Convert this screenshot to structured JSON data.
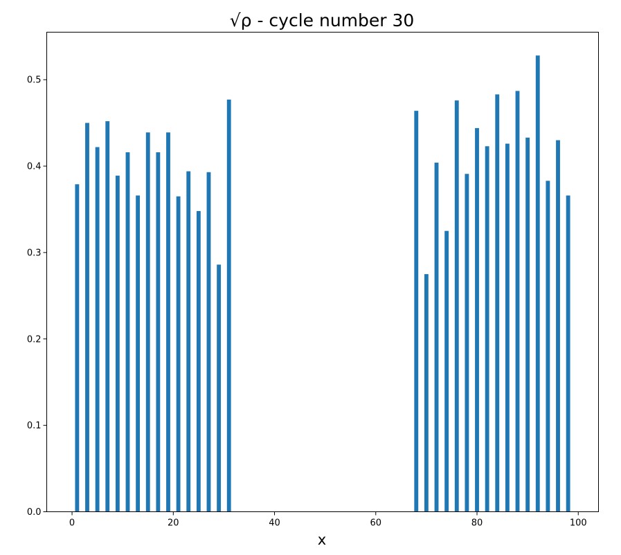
{
  "chart_data": {
    "type": "bar",
    "title_prefix": "√ρ",
    "title_rest": " - cycle number 30",
    "xlabel": "x",
    "ylabel": "",
    "xlim": [
      -5,
      104
    ],
    "ylim": [
      0,
      0.555
    ],
    "bar_width": 0.8,
    "color": "#1f77b4",
    "grid": false,
    "xticks": [
      0,
      20,
      40,
      60,
      80,
      100
    ],
    "xtick_labels": [
      "0",
      "20",
      "40",
      "60",
      "80",
      "100"
    ],
    "yticks": [
      0.0,
      0.1,
      0.2,
      0.3,
      0.4,
      0.5
    ],
    "ytick_labels": [
      "0.0",
      "0.1",
      "0.2",
      "0.3",
      "0.4",
      "0.5"
    ],
    "x": [
      1,
      3,
      5,
      7,
      9,
      11,
      13,
      15,
      17,
      19,
      21,
      23,
      25,
      27,
      29,
      31,
      68,
      70,
      72,
      74,
      76,
      78,
      80,
      82,
      84,
      86,
      88,
      90,
      92,
      94,
      96,
      98
    ],
    "values": [
      0.379,
      0.45,
      0.422,
      0.452,
      0.389,
      0.416,
      0.366,
      0.439,
      0.416,
      0.439,
      0.365,
      0.394,
      0.348,
      0.393,
      0.286,
      0.477,
      0.464,
      0.275,
      0.404,
      0.325,
      0.476,
      0.391,
      0.444,
      0.423,
      0.483,
      0.426,
      0.487,
      0.433,
      0.528,
      0.383,
      0.43,
      0.366
    ]
  }
}
